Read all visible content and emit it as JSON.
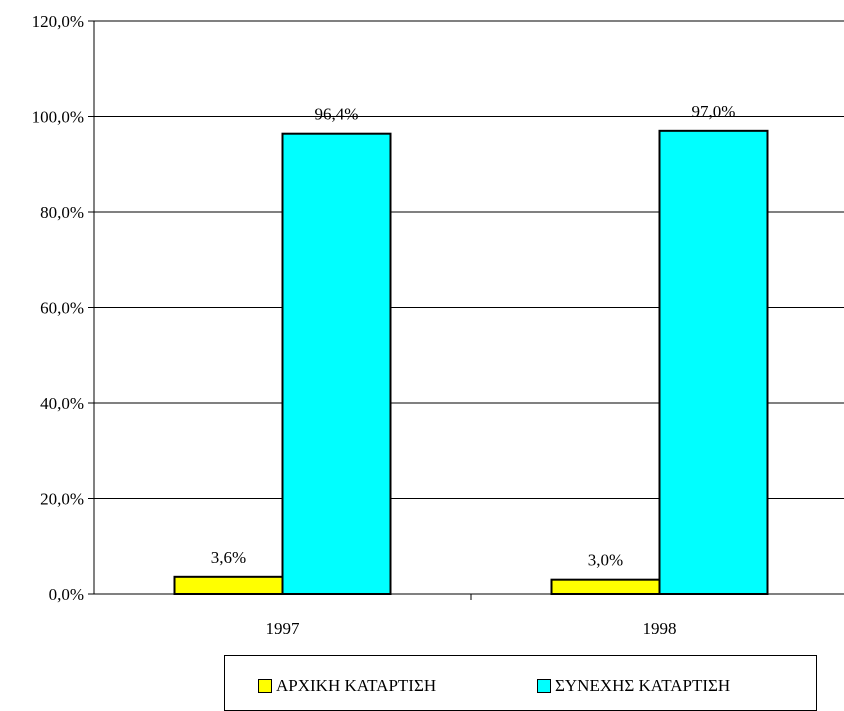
{
  "chart_data": {
    "type": "bar",
    "title": "",
    "xlabel": "",
    "ylabel": "",
    "categories": [
      "1997",
      "1998"
    ],
    "ylim": [
      0,
      120
    ],
    "yticks": [
      0,
      20,
      40,
      60,
      80,
      100,
      120
    ],
    "ytick_labels": [
      "0,0%",
      "20,0%",
      "40,0%",
      "60,0%",
      "80,0%",
      "100,0%",
      "120,0%"
    ],
    "grid": true,
    "legend_position": "bottom",
    "series": [
      {
        "name": "ΑΡΧΙΚΗ ΚΑΤΑΡΤΙΣΗ",
        "values": [
          3.6,
          3.0
        ],
        "labels": [
          "3,6%",
          "3,0%"
        ],
        "color": "#FFFF00"
      },
      {
        "name": "ΣΥΝΕΧΗΣ ΚΑΤΑΡΤΙΣΗ",
        "values": [
          96.4,
          97.0
        ],
        "labels": [
          "96,4%",
          "97,0%"
        ],
        "color": "#00FFFF"
      }
    ]
  }
}
